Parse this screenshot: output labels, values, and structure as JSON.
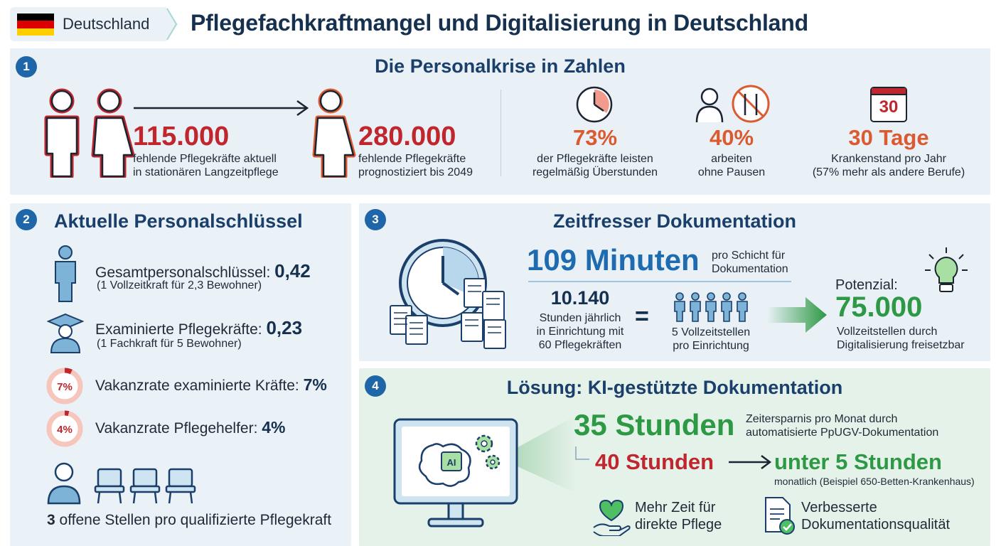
{
  "header": {
    "country": "Deutschland",
    "title": "Pflegefachkraftmangel und Digitalisierung in Deutschland",
    "flag_colors": [
      "#000000",
      "#dd0000",
      "#ffce00"
    ]
  },
  "section1": {
    "number": "1",
    "title": "Die Personalkrise in Zahlen",
    "stat_current": {
      "value": "115.000",
      "line1": "fehlende Pflegekräfte aktuell",
      "line2": "in stationären Langzeitpflege"
    },
    "stat_forecast": {
      "value": "280.000",
      "line1": "fehlende Pflegekräfte",
      "line2": "prognostiziert bis 2049"
    },
    "stat_overtime": {
      "value": "73%",
      "line1": "der Pflegekräfte leisten",
      "line2": "regelmäßig Überstunden",
      "icon": "clock-icon"
    },
    "stat_breaks": {
      "value": "40%",
      "line1": "arbeiten",
      "line2": "ohne Pausen",
      "icon": "no-food-icon"
    },
    "stat_sick": {
      "value": "30 Tage",
      "calendar": "30",
      "line1": "Krankenstand pro Jahr",
      "line2": "(57% mehr als andere Berufe)",
      "icon": "calendar-icon"
    }
  },
  "section2": {
    "number": "2",
    "title": "Aktuelle Personalschlüssel",
    "items": [
      {
        "label": "Gesamtpersonalschlüssel:",
        "value": "0,42",
        "note": "(1 Vollzeitkraft für 2,3 Bewohner)",
        "icon": "person-icon"
      },
      {
        "label": "Examinierte Pflegekräfte:",
        "value": "0,23",
        "note": "(1 Fachkraft für 5 Bewohner)",
        "icon": "graduate-icon"
      },
      {
        "label": "Vakanzrate examinierte Kräfte:",
        "value": "7%",
        "ring": "7%",
        "icon": "ring-chart-icon"
      },
      {
        "label": "Vakanzrate Pflegehelfer:",
        "value": "4%",
        "ring": "4%",
        "icon": "ring-chart-icon"
      }
    ],
    "vacancy_fractions": [
      0.07,
      0.04
    ],
    "open_positions_number": "3",
    "open_positions_text": "offene Stellen pro qualifizierte Pflegekraft"
  },
  "section3": {
    "number": "3",
    "title": "Zeitfresser Dokumentation",
    "minutes_value": "109 Minuten",
    "minutes_line1": "pro Schicht für",
    "minutes_line2": "Dokumentation",
    "hours_value": "10.140",
    "hours_line1": "Stunden jährlich",
    "hours_line2": "in Einrichtung mit",
    "hours_line3": "60 Pflegekräften",
    "equals": "=",
    "fte_line1": "5 Vollzeitstellen",
    "fte_line2": "pro Einrichtung",
    "potential_label": "Potenzial:",
    "potential_value": "75.000",
    "potential_line1": "Vollzeitstellen durch",
    "potential_line2": "Digitalisierung freisetzbar"
  },
  "section4": {
    "number": "4",
    "title": "Lösung: KI-gestützte Dokumentation",
    "ai_label": "AI",
    "saving_value": "35 Stunden",
    "saving_line1": "Zeitersparnis pro Monat durch",
    "saving_line2": "automatisierte PpUGV-Dokumentation",
    "before_value": "40 Stunden",
    "after_value": "unter 5 Stunden",
    "after_note": "monatlich (Beispiel 650-Betten-Krankenhaus)",
    "benefit1_line1": "Mehr Zeit für",
    "benefit1_line2": "direkte Pflege",
    "benefit2_line1": "Verbesserte",
    "benefit2_line2": "Dokumentationsqualität"
  }
}
